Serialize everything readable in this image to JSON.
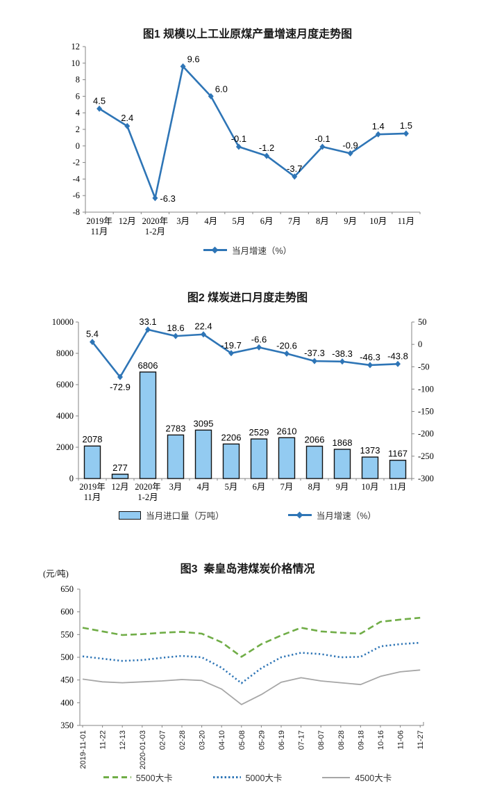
{
  "page": {
    "background": "#ffffff"
  },
  "colors": {
    "line_blue": "#2E75B6",
    "bar_fill": "#93CBF1",
    "bar_border": "#111111",
    "green_5500": "#70AD47",
    "blue_5000": "#2E75B6",
    "gray_4500": "#A6A6A6",
    "axis": "#848484"
  },
  "chart_data": [
    {
      "id": "fig1",
      "type": "line",
      "title": "图1 规模以上工业原煤产量增速月度走势图",
      "categories": [
        "2019年\n11月",
        "12月",
        "2020年\n1-2月",
        "3月",
        "4月",
        "5月",
        "6月",
        "7月",
        "8月",
        "9月",
        "10月",
        "11月"
      ],
      "series": [
        {
          "name": "当月增速（%）",
          "color": "#2E75B6",
          "values": [
            4.5,
            2.4,
            -6.3,
            9.6,
            6.0,
            -0.1,
            -1.2,
            -3.7,
            -0.1,
            -0.9,
            1.4,
            1.5
          ],
          "labels": [
            "4.5",
            "2.4",
            "-6.3",
            "9.6",
            "6.0",
            "-0.1",
            "-1.2",
            "-3.7",
            "-0.1",
            "-0.9",
            "1.4",
            "1.5"
          ]
        }
      ],
      "ylim": [
        -8,
        12
      ],
      "ystep": 2,
      "grid": false,
      "legend_position": "bottom"
    },
    {
      "id": "fig2",
      "type": "bar+line",
      "title": "图2 煤炭进口月度走势图",
      "categories": [
        "2019年\n11月",
        "12月",
        "2020年\n1-2月",
        "3月",
        "4月",
        "5月",
        "6月",
        "7月",
        "8月",
        "9月",
        "10月",
        "11月"
      ],
      "bar_series": {
        "name": "当月进口量（万吨）",
        "axis": "left",
        "fill": "#93CBF1",
        "stroke": "#111111",
        "values": [
          2078,
          277,
          6806,
          2783,
          3095,
          2206,
          2529,
          2610,
          2066,
          1868,
          1373,
          1167
        ],
        "labels": [
          "2078",
          "277",
          "6806",
          "2783",
          "3095",
          "2206",
          "2529",
          "2610",
          "2066",
          "1868",
          "1373",
          "1167"
        ]
      },
      "line_series": {
        "name": "当月增速（%）",
        "axis": "right",
        "color": "#2E75B6",
        "values": [
          5.4,
          -72.9,
          33.1,
          18.6,
          22.4,
          -19.7,
          -6.6,
          -20.6,
          -37.3,
          -38.3,
          -46.3,
          -43.8
        ],
        "labels": [
          "5.4",
          "-72.9",
          "33.1",
          "18.6",
          "22.4",
          "-19.7",
          "-6.6",
          "-20.6",
          "-37.3",
          "-38.3",
          "-46.3",
          "-43.8"
        ]
      },
      "left_ylim": [
        0,
        10000
      ],
      "left_ystep": 2000,
      "right_ylim": [
        -300,
        50
      ],
      "right_ystep": 50,
      "grid": false,
      "legend_position": "bottom"
    },
    {
      "id": "fig3",
      "type": "line",
      "title": "图3  秦皇岛港煤炭价格情况",
      "y_unit": "(元/吨)",
      "categories": [
        "2019-11-01",
        "11-22",
        "12-13",
        "2020-01-03",
        "02-07",
        "02-28",
        "03-20",
        "04-10",
        "05-08",
        "05-29",
        "06-19",
        "07-17",
        "08-07",
        "08-28",
        "09-18",
        "10-16",
        "11-06",
        "11-27"
      ],
      "series": [
        {
          "name": "5500大卡",
          "style": "dashed",
          "color": "#70AD47",
          "values": [
            565,
            557,
            549,
            551,
            554,
            556,
            552,
            533,
            501,
            529,
            548,
            565,
            557,
            554,
            552,
            578,
            583,
            587
          ]
        },
        {
          "name": "5000大卡",
          "style": "dotted",
          "color": "#2E75B6",
          "values": [
            502,
            497,
            492,
            494,
            499,
            503,
            500,
            477,
            443,
            476,
            500,
            510,
            507,
            500,
            501,
            524,
            529,
            532
          ]
        },
        {
          "name": "4500大卡",
          "style": "solid",
          "color": "#A6A6A6",
          "values": [
            452,
            446,
            444,
            446,
            448,
            451,
            449,
            430,
            396,
            418,
            445,
            455,
            448,
            444,
            440,
            458,
            468,
            472
          ]
        }
      ],
      "ylim": [
        350,
        650
      ],
      "ystep": 50,
      "grid": false,
      "legend_position": "bottom"
    }
  ]
}
